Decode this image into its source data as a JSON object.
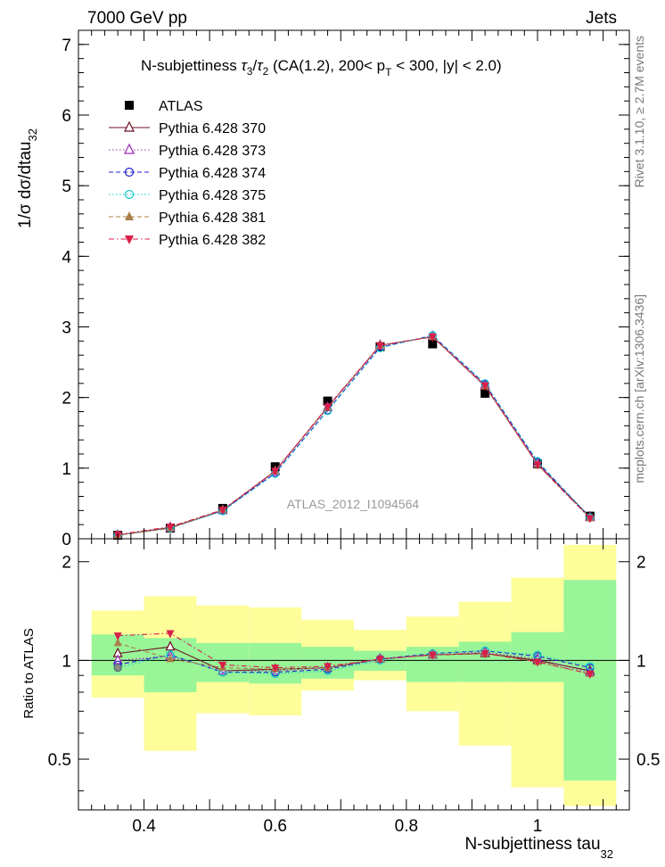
{
  "header": {
    "energy_label": "7000 GeV pp",
    "category_label": "Jets",
    "rivet_label": "Rivet 3.1.10, ≥ 2.7M events",
    "mcplots_label": "mcplots.cern.ch [arXiv:1306.3436]",
    "analysis_label": "ATLAS_2012_I1094564"
  },
  "title": {
    "prefix": "N-subjettiness  ",
    "tau": "τ",
    "sub3": "3",
    "slash": "/",
    "sub2": "2",
    "mid": " (CA(1.2), 200< p",
    "subT": "T",
    "suffix": " < 300, |y| < 2.0)"
  },
  "ylabel_main": {
    "text": "1/σ dσ/dtau",
    "sub": "32"
  },
  "ylabel_ratio": "Ratio to ATLAS",
  "xlabel": {
    "text": "N-subjettiness tau",
    "sub": "32"
  },
  "chart_data": [
    {
      "type": "line",
      "panel": "main",
      "x": [
        0.36,
        0.44,
        0.52,
        0.6,
        0.68,
        0.76,
        0.84,
        0.92,
        1.0,
        1.08
      ],
      "xlim": [
        0.3,
        1.14
      ],
      "ylim": [
        0,
        7.2
      ],
      "y_ticks": [
        "0",
        "1",
        "2",
        "3",
        "4",
        "5",
        "6",
        "7"
      ],
      "legend_position": "top-left",
      "series": [
        {
          "name": "ATLAS",
          "marker": "square",
          "color": "#000000",
          "values": [
            0.05,
            0.15,
            0.43,
            1.02,
            1.95,
            2.72,
            2.76,
            2.06,
            1.06,
            0.32
          ]
        },
        {
          "name": "Pythia 6.428 370",
          "marker": "triangle-open",
          "color": "#6b0f24",
          "dash": "solid",
          "values": [
            0.05,
            0.16,
            0.4,
            0.96,
            1.86,
            2.74,
            2.86,
            2.16,
            1.06,
            0.31
          ]
        },
        {
          "name": "Pythia 6.428 373",
          "marker": "triangle-open",
          "color": "#9a27b4",
          "dash": "dotted",
          "values": [
            0.05,
            0.15,
            0.4,
            0.95,
            1.86,
            2.73,
            2.87,
            2.18,
            1.07,
            0.3
          ]
        },
        {
          "name": "Pythia 6.428 374",
          "marker": "circle-open",
          "color": "#2222cc",
          "dash": "dashed",
          "values": [
            0.05,
            0.15,
            0.4,
            0.93,
            1.82,
            2.71,
            2.88,
            2.19,
            1.09,
            0.3
          ]
        },
        {
          "name": "Pythia 6.428 375",
          "marker": "circle-open",
          "color": "#10cccc",
          "dash": "dotted",
          "values": [
            0.05,
            0.15,
            0.39,
            0.92,
            1.81,
            2.7,
            2.88,
            2.2,
            1.1,
            0.3
          ]
        },
        {
          "name": "Pythia 6.428 381",
          "marker": "triangle-filled",
          "color": "#a8804a",
          "dash": "dashed",
          "values": [
            0.05,
            0.15,
            0.41,
            0.96,
            1.86,
            2.74,
            2.86,
            2.16,
            1.05,
            0.29
          ]
        },
        {
          "name": "Pythia 6.428 382",
          "marker": "triangle-down-filled",
          "color": "#d81f4a",
          "dash": "dashdot",
          "values": [
            0.06,
            0.17,
            0.41,
            0.96,
            1.87,
            2.74,
            2.86,
            2.17,
            1.05,
            0.29
          ]
        }
      ]
    },
    {
      "type": "line",
      "panel": "ratio",
      "x": [
        0.36,
        0.44,
        0.52,
        0.6,
        0.68,
        0.76,
        0.84,
        0.92,
        1.0,
        1.08
      ],
      "xlim": [
        0.3,
        1.14
      ],
      "ylim": [
        0.35,
        2.35
      ],
      "x_ticks": [
        "0.4",
        "0.6",
        "0.8",
        "1"
      ],
      "y_ticks": [
        "0.5",
        "1",
        "2"
      ],
      "bands": {
        "x_edges": [
          0.32,
          0.4,
          0.48,
          0.56,
          0.64,
          0.72,
          0.8,
          0.88,
          0.96,
          1.04,
          1.12
        ],
        "inner_low": [
          0.9,
          0.8,
          0.86,
          0.85,
          0.88,
          0.93,
          0.86,
          0.86,
          0.86,
          0.43
        ],
        "inner_high": [
          1.2,
          1.17,
          1.13,
          1.13,
          1.1,
          1.07,
          1.1,
          1.14,
          1.22,
          1.76
        ],
        "outer_low": [
          0.77,
          0.53,
          0.69,
          0.68,
          0.81,
          0.87,
          0.7,
          0.55,
          0.41,
          0.36
        ],
        "outer_high": [
          1.42,
          1.57,
          1.47,
          1.45,
          1.33,
          1.24,
          1.36,
          1.51,
          1.79,
          2.25
        ],
        "inner_color": "#98f598",
        "outer_color": "#fdfd9a"
      },
      "series": [
        {
          "name": "Pythia 6.428 370",
          "values": [
            1.05,
            1.1,
            0.93,
            0.94,
            0.95,
            1.01,
            1.04,
            1.05,
            1.0,
            0.93
          ]
        },
        {
          "name": "Pythia 6.428 373",
          "values": [
            1.0,
            1.03,
            0.93,
            0.93,
            0.95,
            1.01,
            1.04,
            1.06,
            1.01,
            0.92
          ]
        },
        {
          "name": "Pythia 6.428 374",
          "values": [
            0.97,
            1.04,
            0.92,
            0.92,
            0.94,
            1.01,
            1.05,
            1.07,
            1.03,
            0.95
          ]
        },
        {
          "name": "Pythia 6.428 375",
          "values": [
            0.95,
            1.04,
            0.92,
            0.91,
            0.93,
            1.0,
            1.05,
            1.07,
            1.04,
            0.96
          ]
        },
        {
          "name": "Pythia 6.428 381",
          "values": [
            1.13,
            1.01,
            0.95,
            0.94,
            0.95,
            1.01,
            1.04,
            1.05,
            0.99,
            0.91
          ]
        },
        {
          "name": "Pythia 6.428 382",
          "values": [
            1.19,
            1.21,
            0.97,
            0.95,
            0.96,
            1.01,
            1.04,
            1.05,
            0.99,
            0.91
          ]
        }
      ]
    }
  ]
}
